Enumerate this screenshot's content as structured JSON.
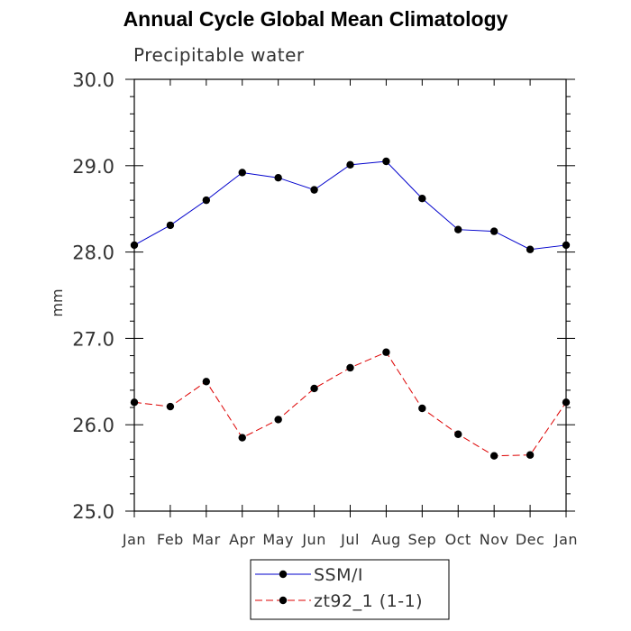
{
  "chart_data": {
    "type": "line",
    "title": "Annual Cycle Global Mean Climatology",
    "subtitle": "Precipitable water",
    "xlabel": "",
    "ylabel": "mm",
    "categories": [
      "Jan",
      "Feb",
      "Mar",
      "Apr",
      "May",
      "Jun",
      "Jul",
      "Aug",
      "Sep",
      "Oct",
      "Nov",
      "Dec",
      "Jan"
    ],
    "ylim": [
      25.0,
      30.0
    ],
    "yticks": [
      "25.0",
      "26.0",
      "27.0",
      "28.0",
      "29.0",
      "30.0"
    ],
    "grid": false,
    "legend_position": "bottom-center",
    "series": [
      {
        "name": "SSM/I",
        "color": "#0000cc",
        "dash": "solid",
        "values": [
          28.08,
          28.31,
          28.6,
          28.92,
          28.86,
          28.72,
          29.01,
          29.05,
          28.62,
          28.26,
          28.24,
          28.03,
          28.08
        ]
      },
      {
        "name": "zt92_1 (1-1)",
        "color": "#dd0000",
        "dash": "dashed",
        "values": [
          26.26,
          26.21,
          26.5,
          25.85,
          26.06,
          26.42,
          26.66,
          26.84,
          26.19,
          25.89,
          25.64,
          25.65,
          26.26
        ]
      }
    ]
  }
}
